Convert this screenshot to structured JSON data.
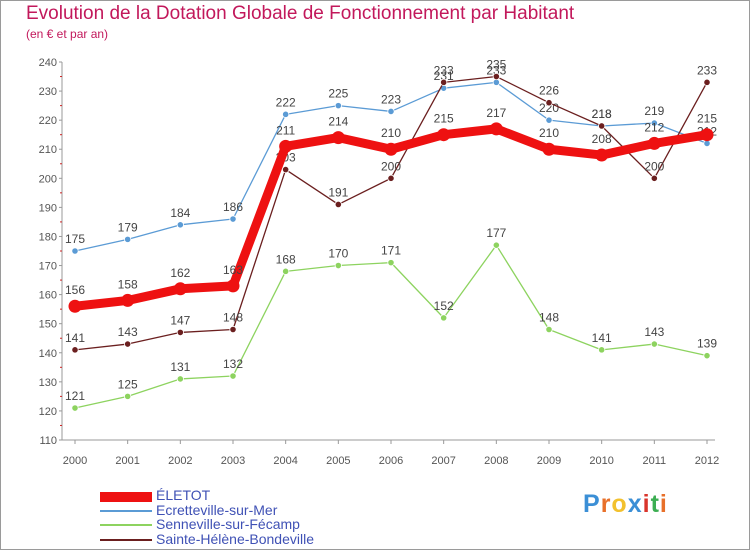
{
  "header": {
    "title": "Evolution de la Dotation Globale de Fonctionnement par Habitant",
    "subtitle": "(en € et par an)"
  },
  "logo": {
    "letters": [
      "P",
      "r",
      "o",
      "x",
      "i",
      "t",
      "i"
    ],
    "colors": [
      "#3b8fd6",
      "#e8702a",
      "#f2c12e",
      "#3b8fd6",
      "#d9342b",
      "#3cae52",
      "#e8702a"
    ]
  },
  "chart_data": {
    "type": "line",
    "x": [
      "2000",
      "2001",
      "2002",
      "2003",
      "2004",
      "2005",
      "2006",
      "2007",
      "2008",
      "2009",
      "2010",
      "2011",
      "2012"
    ],
    "ylim": [
      110,
      240
    ],
    "yticks": [
      "110",
      "120",
      "130",
      "140",
      "150",
      "160",
      "170",
      "180",
      "190",
      "200",
      "210",
      "220",
      "230",
      "240"
    ],
    "grid": false,
    "legend_position": "bottom-left",
    "series": [
      {
        "name": "Ecretteville-sur-Mer",
        "color": "#5b9bd5",
        "values": [
          175,
          179,
          184,
          186,
          222,
          225,
          223,
          231,
          233,
          220,
          218,
          219,
          212
        ]
      },
      {
        "name": "Senneville-sur-Fécamp",
        "color": "#8dd35f",
        "values": [
          121,
          125,
          131,
          132,
          168,
          170,
          171,
          152,
          177,
          148,
          141,
          143,
          139
        ]
      },
      {
        "name": "Sainte-Hélène-Bondeville",
        "color": "#6b1f1f",
        "values": [
          141,
          143,
          147,
          148,
          203,
          191,
          200,
          233,
          235,
          226,
          218,
          200,
          233
        ]
      },
      {
        "name": "ÉLETOT",
        "color": "#ee1111",
        "values": [
          156,
          158,
          162,
          163,
          211,
          214,
          210,
          215,
          217,
          210,
          208,
          212,
          215
        ]
      }
    ]
  }
}
